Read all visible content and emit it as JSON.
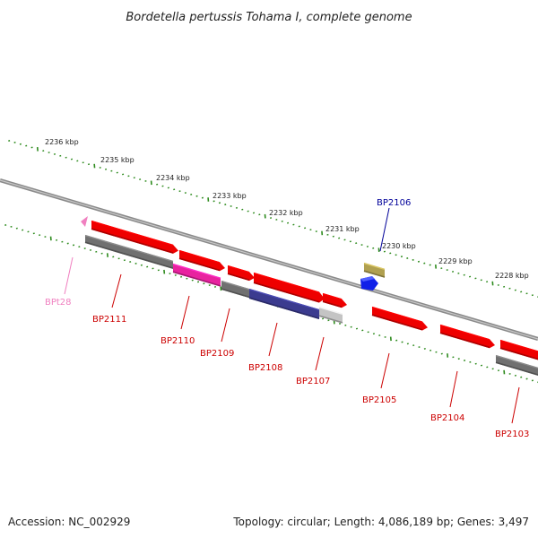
{
  "title": "Bordetella pertussis Tohama I, complete genome",
  "footer": {
    "accession": "Accession: NC_002929",
    "summary": "Topology: circular; Length: 4,086,189 bp; Genes: 3,497"
  },
  "colors": {
    "background": "#ffffff",
    "backbone": "#8a8a8a",
    "ticks": "#2e8b1e",
    "gene_red": "#ee0000",
    "gene_gray": "#707070",
    "gene_magenta": "#e8239f",
    "gene_navy": "#3b3b8f",
    "gene_lightgray": "#c4c4c4",
    "gene_blue": "#1020e8",
    "gene_olive": "#b0a050",
    "gene_pink": "#f080c0"
  },
  "scale_labels": [
    "2236 kbp",
    "2235 kbp",
    "2234 kbp",
    "2233 kbp",
    "2232 kbp",
    "2231 kbp",
    "2230 kbp",
    "2229 kbp",
    "2228 kbp"
  ],
  "genes": [
    {
      "label": "BPt28",
      "color": "#f080c0",
      "label_color": "#f080c0",
      "icon": "small-arrow"
    },
    {
      "label": "BP2111",
      "color": "#ee0000",
      "label_color": "#cc0000"
    },
    {
      "label": "BP2110",
      "color": "#ee0000",
      "label_color": "#cc0000"
    },
    {
      "label": "BP2109",
      "color": "#ee0000",
      "label_color": "#cc0000"
    },
    {
      "label": "BP2108",
      "color": "#ee0000",
      "label_color": "#cc0000"
    },
    {
      "label": "BP2107",
      "color": "#ee0000",
      "label_color": "#cc0000"
    },
    {
      "label": "BP2106",
      "color": "#1020e8",
      "label_color": "#000099"
    },
    {
      "label": "BP2105",
      "color": "#ee0000",
      "label_color": "#cc0000"
    },
    {
      "label": "BP2104",
      "color": "#ee0000",
      "label_color": "#cc0000"
    },
    {
      "label": "BP2103",
      "color": "#ee0000",
      "label_color": "#cc0000"
    }
  ],
  "features": [
    {
      "kind": "gray-block",
      "color": "#707070"
    },
    {
      "kind": "magenta-block",
      "color": "#e8239f"
    },
    {
      "kind": "gray-block",
      "color": "#707070"
    },
    {
      "kind": "navy-block",
      "color": "#3b3b8f"
    },
    {
      "kind": "lightgray-block",
      "color": "#c4c4c4"
    },
    {
      "kind": "olive-block",
      "color": "#b0a050"
    },
    {
      "kind": "gray-block",
      "color": "#707070"
    }
  ]
}
